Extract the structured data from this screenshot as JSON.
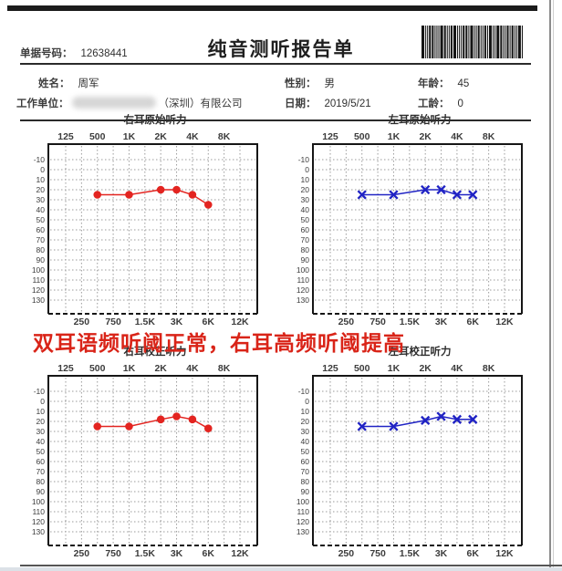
{
  "header": {
    "doc_number_label": "单据号码：",
    "doc_number": "12638441",
    "title": "纯音测听报告单",
    "barcode_icon": "barcode"
  },
  "patient": {
    "name_label": "姓名：",
    "name": "周军",
    "gender_label": "性别：",
    "gender": "男",
    "age_label": "年龄：",
    "age": "45",
    "employer_label": "工作单位：",
    "employer_visible_text": "（深圳）有限公司",
    "date_label": "日期：",
    "date": "2019/5/21",
    "work_years_label": "工龄：",
    "work_years": "0"
  },
  "annotation": {
    "text": "双耳语频听阈正常，右耳高频听阈提高",
    "color": "#d92418"
  },
  "colors": {
    "right_ear": "#e32420",
    "left_ear": "#2023c4",
    "grid": "#9b9b9b",
    "axis": "#161616"
  },
  "chart_data": [
    {
      "type": "line",
      "title": "右耳原始听力",
      "ear": "right",
      "marker": "circle",
      "color": "#e32420",
      "x": [
        "500",
        "1K",
        "2K",
        "3K",
        "4K",
        "6K"
      ],
      "values": [
        25,
        25,
        20,
        20,
        25,
        35
      ],
      "ylim": [
        -10,
        130
      ],
      "y_tick_step": 10,
      "y_unit": "dB",
      "x_axis_ticks": [
        "125",
        "250",
        "500",
        "750",
        "1K",
        "1.5K",
        "2K",
        "3K",
        "4K",
        "6K",
        "8K",
        "12K"
      ],
      "x_top_tick_labels": [
        "125",
        "500",
        "1K",
        "2K",
        "4K",
        "8K"
      ],
      "x_bottom_tick_labels": [
        "250",
        "750",
        "1.5K",
        "3K",
        "6K",
        "12K"
      ],
      "grid": "dashed",
      "legend": "none"
    },
    {
      "type": "line",
      "title": "左耳原始听力",
      "ear": "left",
      "marker": "x",
      "color": "#2023c4",
      "x": [
        "500",
        "1K",
        "2K",
        "3K",
        "4K",
        "6K"
      ],
      "values": [
        25,
        25,
        20,
        20,
        25,
        25
      ],
      "ylim": [
        -10,
        130
      ],
      "y_tick_step": 10,
      "y_unit": "dB",
      "x_axis_ticks": [
        "125",
        "250",
        "500",
        "750",
        "1K",
        "1.5K",
        "2K",
        "3K",
        "4K",
        "6K",
        "8K",
        "12K"
      ],
      "x_top_tick_labels": [
        "125",
        "500",
        "1K",
        "2K",
        "4K",
        "8K"
      ],
      "x_bottom_tick_labels": [
        "250",
        "750",
        "1.5K",
        "3K",
        "6K",
        "12K"
      ],
      "grid": "dashed",
      "legend": "none"
    },
    {
      "type": "line",
      "title": "右耳校正听力",
      "ear": "right",
      "marker": "circle",
      "color": "#e32420",
      "x": [
        "500",
        "1K",
        "2K",
        "3K",
        "4K",
        "6K"
      ],
      "values": [
        25,
        25,
        18,
        15,
        18,
        27
      ],
      "ylim": [
        -10,
        130
      ],
      "y_tick_step": 10,
      "y_unit": "dB",
      "x_axis_ticks": [
        "125",
        "250",
        "500",
        "750",
        "1K",
        "1.5K",
        "2K",
        "3K",
        "4K",
        "6K",
        "8K",
        "12K"
      ],
      "x_top_tick_labels": [
        "125",
        "500",
        "1K",
        "2K",
        "4K",
        "8K"
      ],
      "x_bottom_tick_labels": [
        "250",
        "750",
        "1.5K",
        "3K",
        "6K",
        "12K"
      ],
      "grid": "dashed",
      "legend": "none"
    },
    {
      "type": "line",
      "title": "左耳校正听力",
      "ear": "left",
      "marker": "x",
      "color": "#2023c4",
      "x": [
        "500",
        "1K",
        "2K",
        "3K",
        "4K",
        "6K"
      ],
      "values": [
        25,
        25,
        19,
        15,
        18,
        18
      ],
      "ylim": [
        -10,
        130
      ],
      "y_tick_step": 10,
      "y_unit": "dB",
      "x_axis_ticks": [
        "125",
        "250",
        "500",
        "750",
        "1K",
        "1.5K",
        "2K",
        "3K",
        "4K",
        "6K",
        "8K",
        "12K"
      ],
      "x_top_tick_labels": [
        "125",
        "500",
        "1K",
        "2K",
        "4K",
        "8K"
      ],
      "x_bottom_tick_labels": [
        "250",
        "750",
        "1.5K",
        "3K",
        "6K",
        "12K"
      ],
      "grid": "dashed",
      "legend": "none"
    }
  ]
}
